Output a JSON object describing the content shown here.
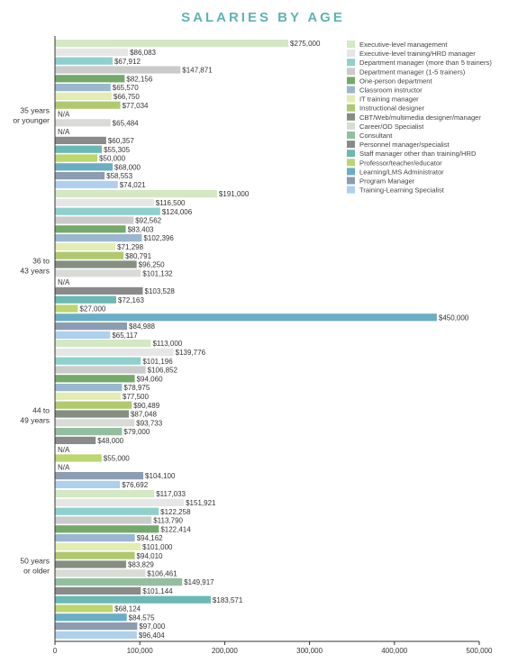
{
  "chart_data": {
    "type": "bar",
    "orientation": "horizontal",
    "title": "SALARIES BY AGE",
    "xlabel": "",
    "ylabel": "",
    "xlim": [
      0,
      500000
    ],
    "x_ticks": [
      "0",
      "100,000",
      "200,000",
      "300,000",
      "400,000",
      "500,000"
    ],
    "legend_position": "top-right",
    "series": [
      {
        "name": "Executive-level management",
        "color": "#d3e8c3"
      },
      {
        "name": "Executive-level training/HRD manager",
        "color": "#e6e6e6"
      },
      {
        "name": "Department manager (more than 5 trainers)",
        "color": "#8ed1cc"
      },
      {
        "name": "Department manager (1-5 trainers)",
        "color": "#cbcbcb"
      },
      {
        "name": "One-person department",
        "color": "#74a96a"
      },
      {
        "name": "Classroom instructor",
        "color": "#9ab7cf"
      },
      {
        "name": "IT training manager",
        "color": "#e3edb1"
      },
      {
        "name": "Instructional designer",
        "color": "#b0c96e"
      },
      {
        "name": "CBT/Web/multimedia designer/manager",
        "color": "#848f82"
      },
      {
        "name": "Career/OD Specialist",
        "color": "#d9dcd6"
      },
      {
        "name": "Consultant",
        "color": "#93bfa0"
      },
      {
        "name": "Personnel manager/specialist",
        "color": "#8a8a8a"
      },
      {
        "name": "Staff manager other than training/HRD",
        "color": "#6bb9b5"
      },
      {
        "name": "Professor/teacher/educator",
        "color": "#bcd670"
      },
      {
        "name": "Learning/LMS Administrator",
        "color": "#6aaec5"
      },
      {
        "name": "Program Manager",
        "color": "#8c9cb1"
      },
      {
        "name": "Training-Learning Specialist",
        "color": "#aed0ec"
      }
    ],
    "groups": [
      {
        "label_lines": [
          "35 years",
          "or younger"
        ],
        "values": [
          275000,
          86083,
          67912,
          147871,
          82156,
          65570,
          66750,
          77034,
          null,
          65484,
          null,
          60357,
          55305,
          50000,
          68000,
          58553,
          74021
        ],
        "labels": [
          "$275,000",
          "$86,083",
          "$67,912",
          "$147,871",
          "$82,156",
          "$65,570",
          "$66,750",
          "$77,034",
          "N/A",
          "$65,484",
          "N/A",
          "$60,357",
          "$55,305",
          "$50,000",
          "$68,000",
          "$58,553",
          "$74,021"
        ]
      },
      {
        "label_lines": [
          "36 to",
          "43 years"
        ],
        "values": [
          191000,
          116500,
          124006,
          92562,
          83403,
          102396,
          71298,
          80791,
          96250,
          101132,
          null,
          103528,
          72163,
          27000,
          450000,
          84988,
          65117
        ],
        "labels": [
          "$191,000",
          "$116,500",
          "$124,006",
          "$92,562",
          "$83,403",
          "$102,396",
          "$71,298",
          "$80,791",
          "$96,250",
          "$101,132",
          "N/A",
          "$103,528",
          "$72,163",
          "$27,000",
          "$450,000",
          "$84,988",
          "$65,117"
        ]
      },
      {
        "label_lines": [
          "44 to",
          "49 years"
        ],
        "values": [
          113000,
          139776,
          101196,
          106852,
          94060,
          78975,
          77500,
          90489,
          87048,
          93733,
          79000,
          48000,
          null,
          55000,
          null,
          104100,
          76692
        ],
        "labels": [
          "$113,000",
          "$139,776",
          "$101,196",
          "$106,852",
          "$94,060",
          "$78,975",
          "$77,500",
          "$90,489",
          "$87,048",
          "$93,733",
          "$79,000",
          "$48,000",
          "N/A",
          "$55,000",
          "N/A",
          "$104,100",
          "$76,692"
        ]
      },
      {
        "label_lines": [
          "50 years",
          "or older"
        ],
        "values": [
          117033,
          151921,
          122258,
          113790,
          122414,
          94162,
          101000,
          94010,
          83829,
          106461,
          149917,
          101144,
          183571,
          68124,
          84575,
          97000,
          96404
        ],
        "labels": [
          "$117,033",
          "$151,921",
          "$122,258",
          "$113,790",
          "$122,414",
          "$94,162",
          "$101,000",
          "$94,010",
          "$83,829",
          "$106,461",
          "$149,917",
          "$101,144",
          "$183,571",
          "$68,124",
          "$84,575",
          "$97,000",
          "$96,404"
        ]
      }
    ]
  }
}
